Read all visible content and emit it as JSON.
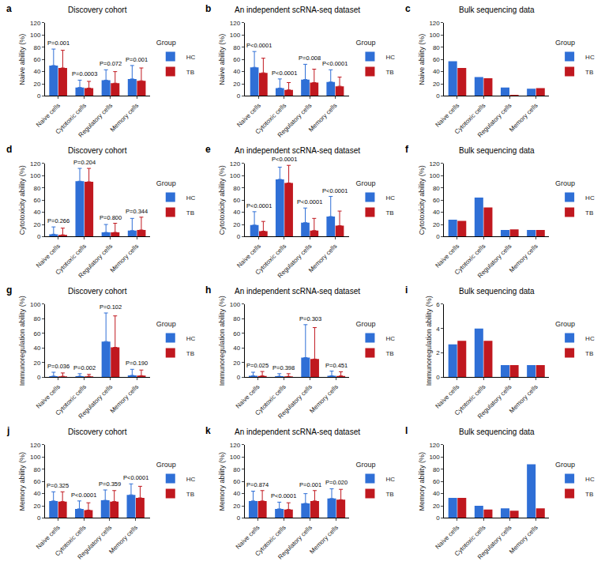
{
  "chart_data": [
    {
      "type": "bar",
      "panel_label": "a",
      "title": "Discovery cohort",
      "y_label": "Naive ability (%)",
      "categories": [
        "Naive cells",
        "Cytotoxic cells",
        "Regulatory cells",
        "Memory cells"
      ],
      "series": [
        {
          "name": "HC",
          "color": "#2F6FD6",
          "values": [
            50,
            14,
            26,
            28
          ],
          "errors": [
            27,
            12,
            17,
            22
          ]
        },
        {
          "name": "TB",
          "color": "#C0181F",
          "values": [
            46,
            13,
            21,
            25
          ],
          "errors": [
            29,
            11,
            19,
            21
          ]
        }
      ],
      "p_values": [
        "P=0.001",
        "P=0.0003",
        "P=0.072",
        "P=0.001"
      ],
      "legend_title": "Group",
      "ylim": [
        0,
        120
      ],
      "yticks": [
        0,
        20,
        40,
        60,
        80,
        100,
        120
      ],
      "grid": false
    },
    {
      "type": "bar",
      "panel_label": "b",
      "title": "An independent scRNA-seq dataset",
      "y_label": "Naive ability (%)",
      "categories": [
        "Naive cells",
        "Cytotoxic cells",
        "Regulatory cells",
        "Memory cells"
      ],
      "series": [
        {
          "name": "HC",
          "color": "#2F6FD6",
          "values": [
            47,
            13,
            27,
            23
          ],
          "errors": [
            26,
            15,
            25,
            20
          ]
        },
        {
          "name": "TB",
          "color": "#C0181F",
          "values": [
            38,
            10,
            22,
            16
          ],
          "errors": [
            24,
            12,
            22,
            15
          ]
        }
      ],
      "p_values": [
        "P<0.0001",
        "P<0.0001",
        "P=0.008",
        "P<0.0001"
      ],
      "legend_title": "Group",
      "ylim": [
        0,
        120
      ],
      "yticks": [
        0,
        20,
        40,
        60,
        80,
        100,
        120
      ],
      "grid": false
    },
    {
      "type": "bar",
      "panel_label": "c",
      "title": "Bulk sequencing data",
      "y_label": "Naive ability (%)",
      "categories": [
        "Naive cells",
        "Cytotoxic cells",
        "Regulatory cells",
        "Memory cells"
      ],
      "series": [
        {
          "name": "HC",
          "color": "#2F6FD6",
          "values": [
            57,
            31,
            14,
            12
          ]
        },
        {
          "name": "TB",
          "color": "#C0181F",
          "values": [
            46,
            29,
            2,
            13
          ]
        }
      ],
      "legend_title": "Group",
      "ylim": [
        0,
        120
      ],
      "yticks": [
        0,
        20,
        40,
        60,
        80,
        100,
        120
      ],
      "grid": false
    },
    {
      "type": "bar",
      "panel_label": "d",
      "title": "Discovery cohort",
      "y_label": "Cytotoxicity ability (%)",
      "categories": [
        "Naive cells",
        "Cytotoxic cells",
        "Regulatory cells",
        "Memory cells"
      ],
      "series": [
        {
          "name": "HC",
          "color": "#2F6FD6",
          "values": [
            4,
            91,
            7,
            10
          ],
          "errors": [
            12,
            21,
            13,
            20
          ]
        },
        {
          "name": "TB",
          "color": "#C0181F",
          "values": [
            3,
            90,
            7,
            11
          ],
          "errors": [
            11,
            22,
            15,
            21
          ]
        }
      ],
      "p_values": [
        "P=0.266",
        "P=0.204",
        "P=0.800",
        "P=0.344"
      ],
      "legend_title": "Group",
      "ylim": [
        0,
        120
      ],
      "yticks": [
        0,
        20,
        40,
        60,
        80,
        100,
        120
      ],
      "grid": false
    },
    {
      "type": "bar",
      "panel_label": "e",
      "title": "An independent scRNA-seq dataset",
      "y_label": "Cytotoxicity ability (%)",
      "categories": [
        "Naive cells",
        "Cytotoxic cells",
        "Regulatory cells",
        "Memory cells"
      ],
      "series": [
        {
          "name": "HC",
          "color": "#2F6FD6",
          "values": [
            19,
            94,
            23,
            33
          ],
          "errors": [
            22,
            20,
            24,
            33
          ]
        },
        {
          "name": "TB",
          "color": "#C0181F",
          "values": [
            9,
            88,
            10,
            18
          ],
          "errors": [
            16,
            29,
            20,
            24
          ]
        }
      ],
      "p_values": [
        "P<0.0001",
        "P<0.0001",
        "P<0.0001",
        "P<0.0001"
      ],
      "legend_title": "Group",
      "ylim": [
        0,
        120
      ],
      "yticks": [
        0,
        20,
        40,
        60,
        80,
        100,
        120
      ],
      "grid": false
    },
    {
      "type": "bar",
      "panel_label": "f",
      "title": "Bulk sequencing data",
      "y_label": "Cytotoxicity ability (%)",
      "categories": [
        "Naive cells",
        "Cytotoxic cells",
        "Regulatory cells",
        "Memory cells"
      ],
      "series": [
        {
          "name": "HC",
          "color": "#2F6FD6",
          "values": [
            28,
            64,
            11,
            11
          ]
        },
        {
          "name": "TB",
          "color": "#C0181F",
          "values": [
            26,
            48,
            12,
            11
          ]
        }
      ],
      "legend_title": "Group",
      "ylim": [
        0,
        120
      ],
      "yticks": [
        0,
        20,
        40,
        60,
        80,
        100,
        120
      ],
      "grid": false
    },
    {
      "type": "bar",
      "panel_label": "g",
      "title": "Discovery cohort",
      "y_label": "Immunoregulation ability (%)",
      "categories": [
        "Naive cells",
        "Cytotoxic cells",
        "Regulatory cells",
        "Memory cells"
      ],
      "series": [
        {
          "name": "HC",
          "color": "#2F6FD6",
          "values": [
            1.7,
            1.6,
            49,
            2.7
          ],
          "errors": [
            5.3,
            3.4,
            39,
            8.3
          ]
        },
        {
          "name": "TB",
          "color": "#C0181F",
          "values": [
            1.4,
            1.4,
            41,
            2.3
          ],
          "errors": [
            4.6,
            2.6,
            43,
            7.7
          ]
        }
      ],
      "p_values": [
        "P=0.036",
        "P=0.002",
        "P=0.102",
        "P=0.190"
      ],
      "legend_title": "Group",
      "ylim": [
        0,
        100
      ],
      "yticks": [
        0,
        20,
        40,
        60,
        80,
        100
      ],
      "grid": false
    },
    {
      "type": "bar",
      "panel_label": "h",
      "title": "An independent scRNA-seq dataset",
      "y_label": "Immunoregulation ability (%)",
      "categories": [
        "Naive cells",
        "Cytotoxic cells",
        "Regulatory cells",
        "Memory cells"
      ],
      "series": [
        {
          "name": "HC",
          "color": "#2F6FD6",
          "values": [
            2.1,
            1.5,
            27,
            2.2
          ],
          "errors": [
            4.9,
            3.5,
            45,
            6.3
          ]
        },
        {
          "name": "TB",
          "color": "#C0181F",
          "values": [
            2.0,
            1.3,
            25,
            2.0
          ],
          "errors": [
            6,
            3.7,
            43,
            5.6
          ]
        }
      ],
      "p_values": [
        "P=0.025",
        "P=0.398",
        "P=0.303",
        "P=0.451"
      ],
      "legend_title": "Group",
      "ylim": [
        0,
        100
      ],
      "yticks": [
        0,
        20,
        40,
        60,
        80,
        100
      ],
      "grid": false
    },
    {
      "type": "bar",
      "panel_label": "i",
      "title": "Bulk sequencing data",
      "y_label": "Immunoregulation ability (%)",
      "categories": [
        "Naive cells",
        "Cytotoxic cells",
        "Regulatory cells",
        "Memory cells"
      ],
      "series": [
        {
          "name": "HC",
          "color": "#2F6FD6",
          "values": [
            2.7,
            4.0,
            1.0,
            1.0
          ]
        },
        {
          "name": "TB",
          "color": "#C0181F",
          "values": [
            3.0,
            3.0,
            1.0,
            1.0
          ]
        }
      ],
      "legend_title": "Group",
      "ylim": [
        0,
        6
      ],
      "yticks": [
        0,
        2,
        4,
        6
      ],
      "grid": false
    },
    {
      "type": "bar",
      "panel_label": "j",
      "title": "Discovery cohort",
      "y_label": "Memory ability (%)",
      "categories": [
        "Naive cells",
        "Cytotoxic cells",
        "Regulatory cells",
        "Memory cells"
      ],
      "series": [
        {
          "name": "HC",
          "color": "#2F6FD6",
          "values": [
            28,
            15,
            29,
            38
          ],
          "errors": [
            15,
            13,
            17,
            18
          ]
        },
        {
          "name": "TB",
          "color": "#C0181F",
          "values": [
            27,
            13,
            27,
            33
          ],
          "errors": [
            16,
            12,
            18,
            19
          ]
        }
      ],
      "p_values": [
        "P=0.325",
        "P<0.0001",
        "P=0.359",
        "P<0.0001"
      ],
      "legend_title": "Group",
      "ylim": [
        0,
        120
      ],
      "yticks": [
        0,
        20,
        40,
        60,
        80,
        100,
        120
      ],
      "grid": false
    },
    {
      "type": "bar",
      "panel_label": "k",
      "title": "An independent scRNA-seq dataset",
      "y_label": "Memory ability (%)",
      "categories": [
        "Naive cells",
        "Cytotoxic cells",
        "Regulatory cells",
        "Memory cells"
      ],
      "series": [
        {
          "name": "HC",
          "color": "#2F6FD6",
          "values": [
            28,
            15,
            24,
            32
          ],
          "errors": [
            16,
            11,
            16,
            16
          ]
        },
        {
          "name": "TB",
          "color": "#C0181F",
          "values": [
            28,
            14,
            28,
            30
          ],
          "errors": [
            17,
            11,
            17,
            17
          ]
        }
      ],
      "p_values": [
        "P=0.874",
        "P<0.0001",
        "P=0.001",
        "P=0.020"
      ],
      "legend_title": "Group",
      "ylim": [
        0,
        120
      ],
      "yticks": [
        0,
        20,
        40,
        60,
        80,
        100,
        120
      ],
      "grid": false
    },
    {
      "type": "bar",
      "panel_label": "l",
      "title": "Bulk sequencing data",
      "y_label": "Memory ability (%)",
      "categories": [
        "Naive cells",
        "Cytotoxic cells",
        "Regulatory cells",
        "Memory cells"
      ],
      "series": [
        {
          "name": "HC",
          "color": "#2F6FD6",
          "values": [
            33,
            20,
            16,
            88
          ]
        },
        {
          "name": "TB",
          "color": "#C0181F",
          "values": [
            33,
            14,
            12,
            16
          ]
        }
      ],
      "legend_title": "Group",
      "ylim": [
        0,
        120
      ],
      "yticks": [
        0,
        20,
        40,
        60,
        80,
        100,
        120
      ],
      "grid": false
    }
  ]
}
